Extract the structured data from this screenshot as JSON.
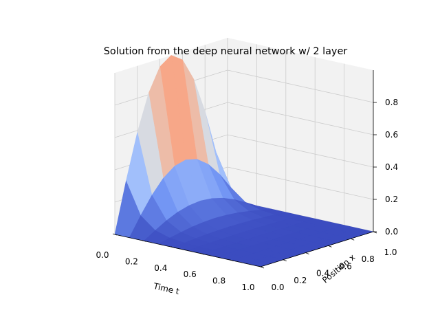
{
  "chart_data": {
    "type": "surface",
    "title": "Solution from the deep neural network w/ 2 layer",
    "xlabel": "Time $t$",
    "xlabel_display": "Time t",
    "ylabel": "Position $x$",
    "ylabel_display": "Position x",
    "zlabel": "",
    "xlim": [
      0,
      1
    ],
    "ylim": [
      0,
      1
    ],
    "zlim": [
      0,
      1
    ],
    "x_ticks": [
      "0.0",
      "0.2",
      "0.4",
      "0.6",
      "0.8",
      "1.0"
    ],
    "y_ticks": [
      "0.0",
      "0.2",
      "0.4",
      "0.6",
      "0.8",
      "1.0"
    ],
    "z_ticks": [
      "0.0",
      "0.2",
      "0.4",
      "0.6",
      "0.8"
    ],
    "x_tick_values": [
      0,
      0.2,
      0.4,
      0.6,
      0.8,
      1.0
    ],
    "y_tick_values": [
      0,
      0.2,
      0.4,
      0.6,
      0.8,
      1.0
    ],
    "z_tick_values": [
      0,
      0.2,
      0.4,
      0.6,
      0.8
    ],
    "grid": true,
    "colormap": "coolwarm",
    "colormap_stops": [
      "#3b4cc0",
      "#6f92f3",
      "#aac7fd",
      "#dddddd",
      "#f7a889",
      "#e26952",
      "#b40426"
    ],
    "pane_color": "#f2f2f2",
    "grid_color": "#cccccc",
    "surface_formula": "u(t, x) = exp(-pi^2 t) sin(pi x)",
    "x": [
      0,
      0.1,
      0.2,
      0.3,
      0.4,
      0.5,
      0.6,
      0.7,
      0.8,
      0.9,
      1.0
    ],
    "y": [
      0,
      0.1,
      0.2,
      0.3,
      0.4,
      0.5,
      0.6,
      0.7,
      0.8,
      0.9,
      1.0
    ],
    "z": [
      [
        0.0,
        0.309,
        0.588,
        0.809,
        0.951,
        1.0,
        0.951,
        0.809,
        0.588,
        0.309,
        0.0
      ],
      [
        0.0,
        0.115,
        0.219,
        0.302,
        0.355,
        0.373,
        0.355,
        0.302,
        0.219,
        0.115,
        0.0
      ],
      [
        0.0,
        0.043,
        0.082,
        0.113,
        0.132,
        0.139,
        0.132,
        0.113,
        0.082,
        0.043,
        0.0
      ],
      [
        0.0,
        0.016,
        0.03,
        0.042,
        0.049,
        0.052,
        0.049,
        0.042,
        0.03,
        0.016,
        0.0
      ],
      [
        0.0,
        0.006,
        0.011,
        0.016,
        0.018,
        0.019,
        0.018,
        0.016,
        0.011,
        0.006,
        0.0
      ],
      [
        0.0,
        0.002,
        0.004,
        0.006,
        0.007,
        0.007,
        0.007,
        0.006,
        0.004,
        0.002,
        0.0
      ],
      [
        0.0,
        0.001,
        0.002,
        0.002,
        0.003,
        0.003,
        0.003,
        0.002,
        0.002,
        0.001,
        0.0
      ],
      [
        0.0,
        0.0,
        0.001,
        0.001,
        0.001,
        0.001,
        0.001,
        0.001,
        0.001,
        0.0,
        0.0
      ],
      [
        0.0,
        0.0,
        0.0,
        0.0,
        0.0,
        0.0,
        0.0,
        0.0,
        0.0,
        0.0,
        0.0
      ],
      [
        0.0,
        0.0,
        0.0,
        0.0,
        0.0,
        0.0,
        0.0,
        0.0,
        0.0,
        0.0,
        0.0
      ],
      [
        0.0,
        0.0,
        0.0,
        0.0,
        0.0,
        0.0,
        0.0,
        0.0,
        0.0,
        0.0,
        0.0
      ]
    ]
  }
}
